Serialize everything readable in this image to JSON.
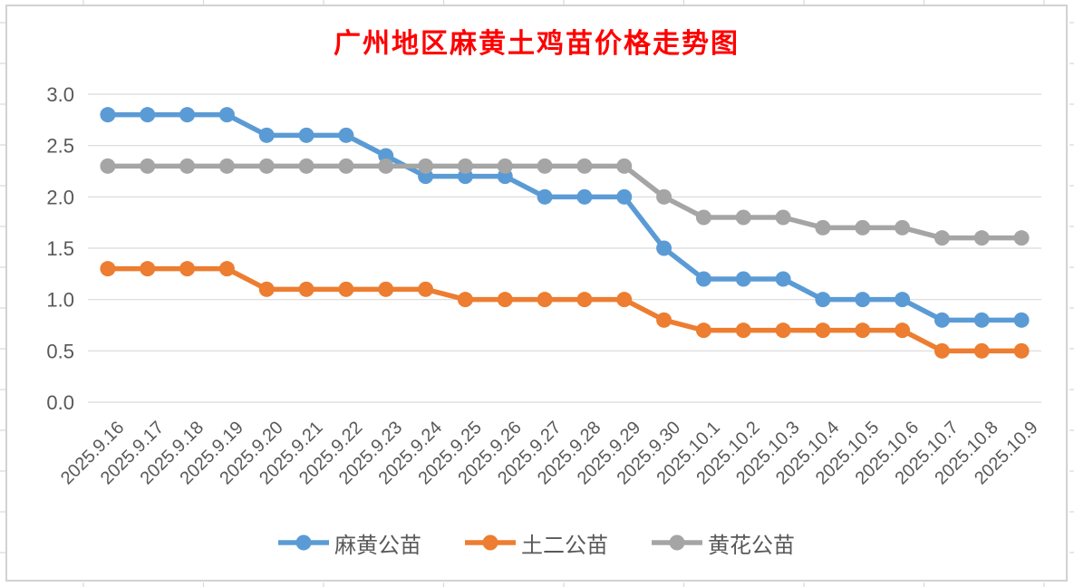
{
  "chart_data": {
    "type": "line",
    "title": "广州地区麻黄土鸡苗价格走势图",
    "title_color": "#FF0000",
    "categories": [
      "2025.9.16",
      "2025.9.17",
      "2025.9.18",
      "2025.9.19",
      "2025.9.20",
      "2025.9.21",
      "2025.9.22",
      "2025.9.23",
      "2025.9.24",
      "2025.9.25",
      "2025.9.26",
      "2025.9.27",
      "2025.9.28",
      "2025.9.29",
      "2025.9.30",
      "2025.10.1",
      "2025.10.2",
      "2025.10.3",
      "2025.10.4",
      "2025.10.5",
      "2025.10.6",
      "2025.10.7",
      "2025.10.8",
      "2025.10.9"
    ],
    "series": [
      {
        "name": "麻黄公苗",
        "color": "#5B9BD5",
        "values": [
          2.8,
          2.8,
          2.8,
          2.8,
          2.6,
          2.6,
          2.6,
          2.4,
          2.2,
          2.2,
          2.2,
          2.0,
          2.0,
          2.0,
          1.5,
          1.2,
          1.2,
          1.2,
          1.0,
          1.0,
          1.0,
          0.8,
          0.8,
          0.8
        ]
      },
      {
        "name": "土二公苗",
        "color": "#ED7D31",
        "values": [
          1.3,
          1.3,
          1.3,
          1.3,
          1.1,
          1.1,
          1.1,
          1.1,
          1.1,
          1.0,
          1.0,
          1.0,
          1.0,
          1.0,
          0.8,
          0.7,
          0.7,
          0.7,
          0.7,
          0.7,
          0.7,
          0.5,
          0.5,
          0.5
        ]
      },
      {
        "name": "黄花公苗",
        "color": "#A5A5A5",
        "values": [
          2.3,
          2.3,
          2.3,
          2.3,
          2.3,
          2.3,
          2.3,
          2.3,
          2.3,
          2.3,
          2.3,
          2.3,
          2.3,
          2.3,
          2.0,
          1.8,
          1.8,
          1.8,
          1.7,
          1.7,
          1.7,
          1.6,
          1.6,
          1.6
        ]
      }
    ],
    "ylim": [
      0.0,
      3.0
    ],
    "y_ticks": [
      "3.0",
      "2.5",
      "2.0",
      "1.5",
      "1.0",
      "0.5",
      "0.0"
    ],
    "xlabel": "",
    "ylabel": "",
    "grid": "horizontal",
    "legend_position": "bottom",
    "axis_label_color": "#595959",
    "gridline_color": "#D9D9D9"
  }
}
